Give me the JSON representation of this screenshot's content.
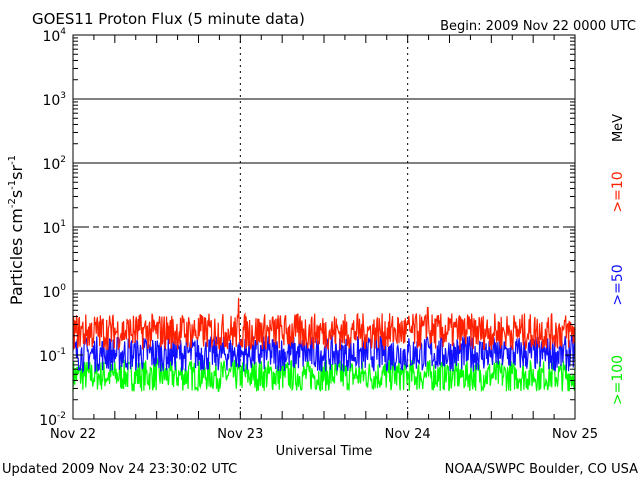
{
  "chart_data": {
    "type": "line",
    "title": "GOES11 Proton Flux (5 minute data)",
    "begin_label": "Begin: 2009 Nov 22 0000 UTC",
    "xlabel": "Universal Time",
    "ylabel_parts": [
      "Particles cm",
      "-2",
      "s",
      "-1",
      "sr",
      "-1"
    ],
    "x_ticks": [
      "Nov 22",
      "Nov 23",
      "Nov 24",
      "Nov 25"
    ],
    "x_range_days": [
      0,
      3
    ],
    "y_scale": "log",
    "ylim": [
      0.01,
      10000
    ],
    "y_ticks": [
      {
        "base": "10",
        "exp": "-2",
        "value": 0.01
      },
      {
        "base": "10",
        "exp": "-1",
        "value": 0.1
      },
      {
        "base": "10",
        "exp": "0",
        "value": 1
      },
      {
        "base": "10",
        "exp": "1",
        "value": 10
      },
      {
        "base": "10",
        "exp": "2",
        "value": 100
      },
      {
        "base": "10",
        "exp": "3",
        "value": 1000
      },
      {
        "base": "10",
        "exp": "4",
        "value": 10000
      }
    ],
    "threshold_lines": [
      {
        "value": 1,
        "style": "solid"
      },
      {
        "value": 10,
        "style": "dashed"
      },
      {
        "value": 100,
        "style": "solid"
      },
      {
        "value": 1000,
        "style": "solid"
      }
    ],
    "unit_label": "MeV",
    "series": [
      {
        "name": ">=10",
        "color": "#ff2000",
        "range": [
          0.12,
          0.45
        ],
        "peaks": [
          {
            "day": 0.99,
            "value": 0.78
          },
          {
            "day": 2.12,
            "value": 0.55
          }
        ]
      },
      {
        "name": ">=50",
        "color": "#1010ff",
        "range": [
          0.055,
          0.2
        ],
        "peaks": []
      },
      {
        "name": ">=100",
        "color": "#00ff00",
        "range": [
          0.027,
          0.085
        ],
        "peaks": []
      }
    ]
  },
  "footer": {
    "updated": "Updated 2009 Nov 24 23:30:02 UTC",
    "source": "NOAA/SWPC Boulder, CO USA"
  }
}
